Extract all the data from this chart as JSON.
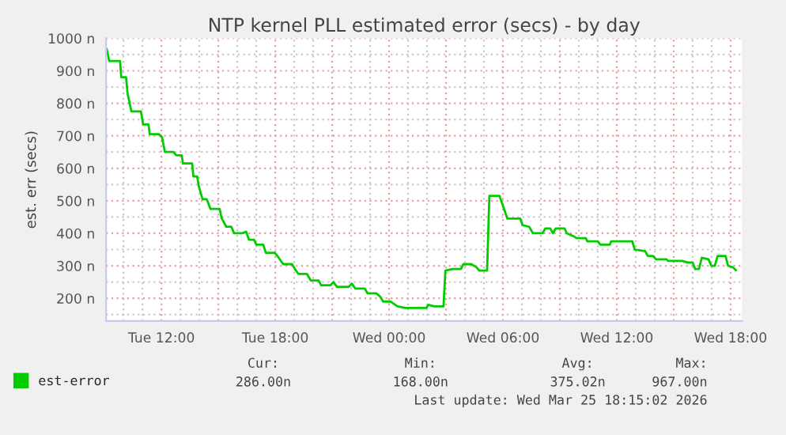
{
  "chart_data": {
    "type": "line",
    "title": "NTP kernel PLL estimated error (secs) - by day",
    "ylabel": "est. err (secs)",
    "xlim": [
      "2026-03-24T09:05",
      "2026-03-25T18:36"
    ],
    "ylim": [
      130,
      1000
    ],
    "xticks": [
      {
        "value": "2026-03-24T12:00",
        "label": "Tue 12:00"
      },
      {
        "value": "2026-03-24T15:00",
        "label": null
      },
      {
        "value": "2026-03-24T18:00",
        "label": "Tue 18:00"
      },
      {
        "value": "2026-03-24T21:00",
        "label": null
      },
      {
        "value": "2026-03-25T00:00",
        "label": "Wed 00:00"
      },
      {
        "value": "2026-03-25T03:00",
        "label": null
      },
      {
        "value": "2026-03-25T06:00",
        "label": "Wed 06:00"
      },
      {
        "value": "2026-03-25T09:00",
        "label": null
      },
      {
        "value": "2026-03-25T12:00",
        "label": "Wed 12:00"
      },
      {
        "value": "2026-03-25T15:00",
        "label": null
      },
      {
        "value": "2026-03-25T18:00",
        "label": "Wed 18:00"
      }
    ],
    "yticks": [
      {
        "value": 200,
        "label": "200 n"
      },
      {
        "value": 300,
        "label": "300 n"
      },
      {
        "value": 400,
        "label": "400 n"
      },
      {
        "value": 500,
        "label": "500 n"
      },
      {
        "value": 600,
        "label": "600 n"
      },
      {
        "value": 700,
        "label": "700 n"
      },
      {
        "value": 800,
        "label": "800 n"
      },
      {
        "value": 900,
        "label": "900 n"
      },
      {
        "value": 1000,
        "label": "1000 n"
      }
    ],
    "grid": true,
    "legend": "bottom",
    "series": [
      {
        "name": "est-error",
        "color": "#00cc00",
        "x": [
          "2026-03-24T09:07",
          "2026-03-24T09:15",
          "2026-03-24T09:49",
          "2026-03-24T09:53",
          "2026-03-24T10:08",
          "2026-03-24T10:13",
          "2026-03-24T10:25",
          "2026-03-24T10:55",
          "2026-03-24T11:02",
          "2026-03-24T11:19",
          "2026-03-24T11:23",
          "2026-03-24T11:52",
          "2026-03-24T12:02",
          "2026-03-24T12:11",
          "2026-03-24T12:38",
          "2026-03-24T12:47",
          "2026-03-24T13:04",
          "2026-03-24T13:08",
          "2026-03-24T13:37",
          "2026-03-24T13:41",
          "2026-03-24T13:53",
          "2026-03-24T13:58",
          "2026-03-24T14:10",
          "2026-03-24T14:23",
          "2026-03-24T14:35",
          "2026-03-24T15:04",
          "2026-03-24T15:11",
          "2026-03-24T15:25",
          "2026-03-24T15:41",
          "2026-03-24T15:50",
          "2026-03-24T16:15",
          "2026-03-24T16:28",
          "2026-03-24T16:37",
          "2026-03-24T16:53",
          "2026-03-24T17:00",
          "2026-03-24T17:22",
          "2026-03-24T17:30",
          "2026-03-24T17:58",
          "2026-03-24T18:07",
          "2026-03-24T18:25",
          "2026-03-24T18:53",
          "2026-03-24T19:02",
          "2026-03-24T19:13",
          "2026-03-24T19:40",
          "2026-03-24T19:52",
          "2026-03-24T20:17",
          "2026-03-24T20:25",
          "2026-03-24T20:55",
          "2026-03-24T21:04",
          "2026-03-24T21:15",
          "2026-03-24T21:52",
          "2026-03-24T22:02",
          "2026-03-24T22:13",
          "2026-03-24T22:43",
          "2026-03-24T22:52",
          "2026-03-24T23:20",
          "2026-03-24T23:32",
          "2026-03-24T23:41",
          "2026-03-25T00:05",
          "2026-03-25T00:19",
          "2026-03-25T00:27",
          "2026-03-25T00:52",
          "2026-03-25T01:58",
          "2026-03-25T02:04",
          "2026-03-25T02:23",
          "2026-03-25T02:52",
          "2026-03-25T02:58",
          "2026-03-25T03:22",
          "2026-03-25T03:47",
          "2026-03-25T03:55",
          "2026-03-25T04:20",
          "2026-03-25T04:37",
          "2026-03-25T04:45",
          "2026-03-25T05:10",
          "2026-03-25T05:17",
          "2026-03-25T05:49",
          "2026-03-25T06:00",
          "2026-03-25T06:14",
          "2026-03-25T06:55",
          "2026-03-25T07:02",
          "2026-03-25T07:23",
          "2026-03-25T07:35",
          "2026-03-25T08:05",
          "2026-03-25T08:14",
          "2026-03-25T08:30",
          "2026-03-25T08:38",
          "2026-03-25T08:47",
          "2026-03-25T09:15",
          "2026-03-25T09:22",
          "2026-03-25T09:45",
          "2026-03-25T09:53",
          "2026-03-25T10:22",
          "2026-03-25T10:27",
          "2026-03-25T11:00",
          "2026-03-25T11:08",
          "2026-03-25T11:38",
          "2026-03-25T11:42",
          "2026-03-25T12:49",
          "2026-03-25T12:57",
          "2026-03-25T13:30",
          "2026-03-25T13:38",
          "2026-03-25T13:55",
          "2026-03-25T14:04",
          "2026-03-25T14:37",
          "2026-03-25T14:42",
          "2026-03-25T15:27",
          "2026-03-25T15:44",
          "2026-03-25T16:00",
          "2026-03-25T16:08",
          "2026-03-25T16:20",
          "2026-03-25T16:29",
          "2026-03-25T16:50",
          "2026-03-25T16:59",
          "2026-03-25T17:10",
          "2026-03-25T17:19",
          "2026-03-25T17:44",
          "2026-03-25T17:52",
          "2026-03-25T18:08",
          "2026-03-25T18:17"
        ],
        "values": [
          967,
          930,
          930,
          880,
          880,
          830,
          775,
          775,
          735,
          735,
          705,
          705,
          695,
          650,
          650,
          640,
          640,
          615,
          615,
          575,
          575,
          545,
          505,
          505,
          475,
          475,
          445,
          420,
          420,
          400,
          400,
          405,
          380,
          380,
          365,
          365,
          340,
          340,
          330,
          305,
          305,
          290,
          275,
          275,
          255,
          255,
          240,
          240,
          250,
          235,
          235,
          245,
          230,
          230,
          215,
          215,
          205,
          190,
          190,
          180,
          175,
          170,
          170,
          180,
          175,
          175,
          285,
          290,
          290,
          305,
          305,
          295,
          285,
          285,
          515,
          515,
          485,
          445,
          445,
          425,
          420,
          400,
          400,
          415,
          415,
          400,
          415,
          415,
          400,
          390,
          385,
          385,
          375,
          375,
          365,
          365,
          375,
          375,
          350,
          345,
          330,
          330,
          320,
          320,
          315,
          315,
          310,
          310,
          290,
          290,
          325,
          320,
          300,
          300,
          330,
          330,
          300,
          295,
          286
        ]
      }
    ],
    "annotations": [
      "Cur:",
      "Min:",
      "Avg:",
      "Max:",
      "286.00n",
      "168.00n",
      "375.02n",
      "967.00n",
      "Last update: Wed Mar 25 18:15:02 2026"
    ]
  }
}
